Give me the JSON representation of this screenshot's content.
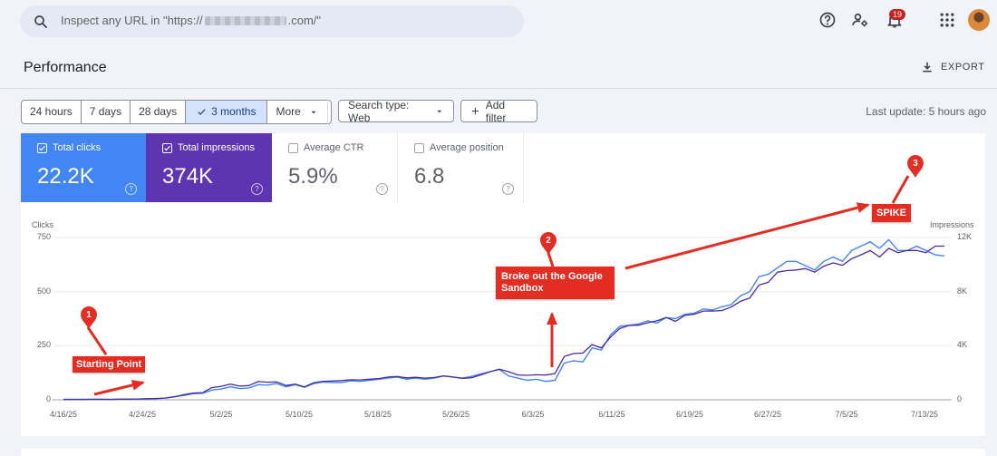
{
  "search": {
    "placeholder_prefix": "Inspect any URL in \"https://",
    "placeholder_suffix": ".com/\""
  },
  "topbar": {
    "notification_count": "19"
  },
  "page": {
    "title": "Performance",
    "export_label": "EXPORT"
  },
  "filters": {
    "ranges": [
      {
        "label": "24 hours",
        "selected": false
      },
      {
        "label": "7 days",
        "selected": false
      },
      {
        "label": "28 days",
        "selected": false
      },
      {
        "label": "3 months",
        "selected": true
      },
      {
        "label": "More",
        "selected": false
      }
    ],
    "search_type": "Search type: Web",
    "add_filter": "Add filter",
    "last_update": "Last update: 5 hours ago"
  },
  "metrics": [
    {
      "label": "Total clicks",
      "value": "22.2K",
      "checked": true,
      "color": "#4285f4"
    },
    {
      "label": "Total impressions",
      "value": "374K",
      "checked": true,
      "color": "#5e35b1"
    },
    {
      "label": "Average CTR",
      "value": "5.9%",
      "checked": false
    },
    {
      "label": "Average position",
      "value": "6.8",
      "checked": false
    }
  ],
  "annotations": [
    {
      "number": "1",
      "text": "Starting Point"
    },
    {
      "number": "2",
      "text_line1": "Broke out the Google",
      "text_line2": "Sandbox"
    },
    {
      "number": "3",
      "text": "SPIKE"
    }
  ],
  "chart_data": {
    "type": "line",
    "ylabel_left": "Clicks",
    "ylabel_right": "Impressions",
    "y_left_ticks": [
      "750",
      "500",
      "250",
      "0"
    ],
    "y_right_ticks": [
      "12K",
      "8K",
      "4K",
      "0"
    ],
    "ylim_left": [
      0,
      750
    ],
    "ylim_right": [
      0,
      12000
    ],
    "x_ticks": [
      "4/16/25",
      "4/24/25",
      "5/2/25",
      "5/10/25",
      "5/18/25",
      "5/26/25",
      "6/3/25",
      "6/11/25",
      "6/19/25",
      "6/27/25",
      "7/5/25",
      "7/13/25"
    ],
    "grid": true,
    "series": [
      {
        "name": "Total clicks",
        "axis": "left",
        "color": "#4285f4",
        "values": [
          2,
          2,
          2,
          2,
          2,
          2,
          3,
          3,
          3,
          4,
          5,
          8,
          15,
          20,
          28,
          30,
          45,
          50,
          60,
          52,
          55,
          70,
          68,
          75,
          60,
          70,
          58,
          75,
          82,
          80,
          80,
          88,
          85,
          90,
          95,
          100,
          105,
          95,
          100,
          95,
          100,
          110,
          105,
          100,
          108,
          120,
          130,
          140,
          110,
          100,
          90,
          95,
          85,
          90,
          170,
          180,
          175,
          240,
          230,
          300,
          340,
          345,
          350,
          365,
          355,
          380,
          375,
          395,
          400,
          420,
          415,
          430,
          440,
          480,
          500,
          570,
          580,
          610,
          640,
          640,
          620,
          600,
          640,
          660,
          640,
          690,
          710,
          730,
          700,
          740,
          690,
          690,
          710,
          690,
          670,
          665
        ]
      },
      {
        "name": "Total impressions",
        "axis": "right",
        "color": "#4b2c9e",
        "values": [
          20,
          25,
          30,
          35,
          40,
          30,
          40,
          50,
          60,
          80,
          100,
          130,
          220,
          380,
          500,
          520,
          900,
          1000,
          1150,
          1010,
          1050,
          1350,
          1300,
          1320,
          1060,
          1150,
          960,
          1270,
          1370,
          1390,
          1420,
          1480,
          1470,
          1520,
          1560,
          1680,
          1720,
          1620,
          1660,
          1600,
          1650,
          1760,
          1680,
          1590,
          1630,
          1840,
          2080,
          2260,
          2080,
          1840,
          1810,
          1850,
          1830,
          1940,
          3200,
          3420,
          3450,
          4080,
          3840,
          4640,
          5280,
          5500,
          5520,
          5700,
          5840,
          6080,
          5800,
          6240,
          6320,
          6560,
          6560,
          6600,
          6860,
          7280,
          7520,
          8480,
          8690,
          9440,
          9550,
          9600,
          9700,
          9440,
          9880,
          10120,
          9950,
          10440,
          10720,
          11040,
          10560,
          11200,
          10880,
          11040,
          11040,
          10880,
          11360,
          11360
        ]
      }
    ]
  }
}
